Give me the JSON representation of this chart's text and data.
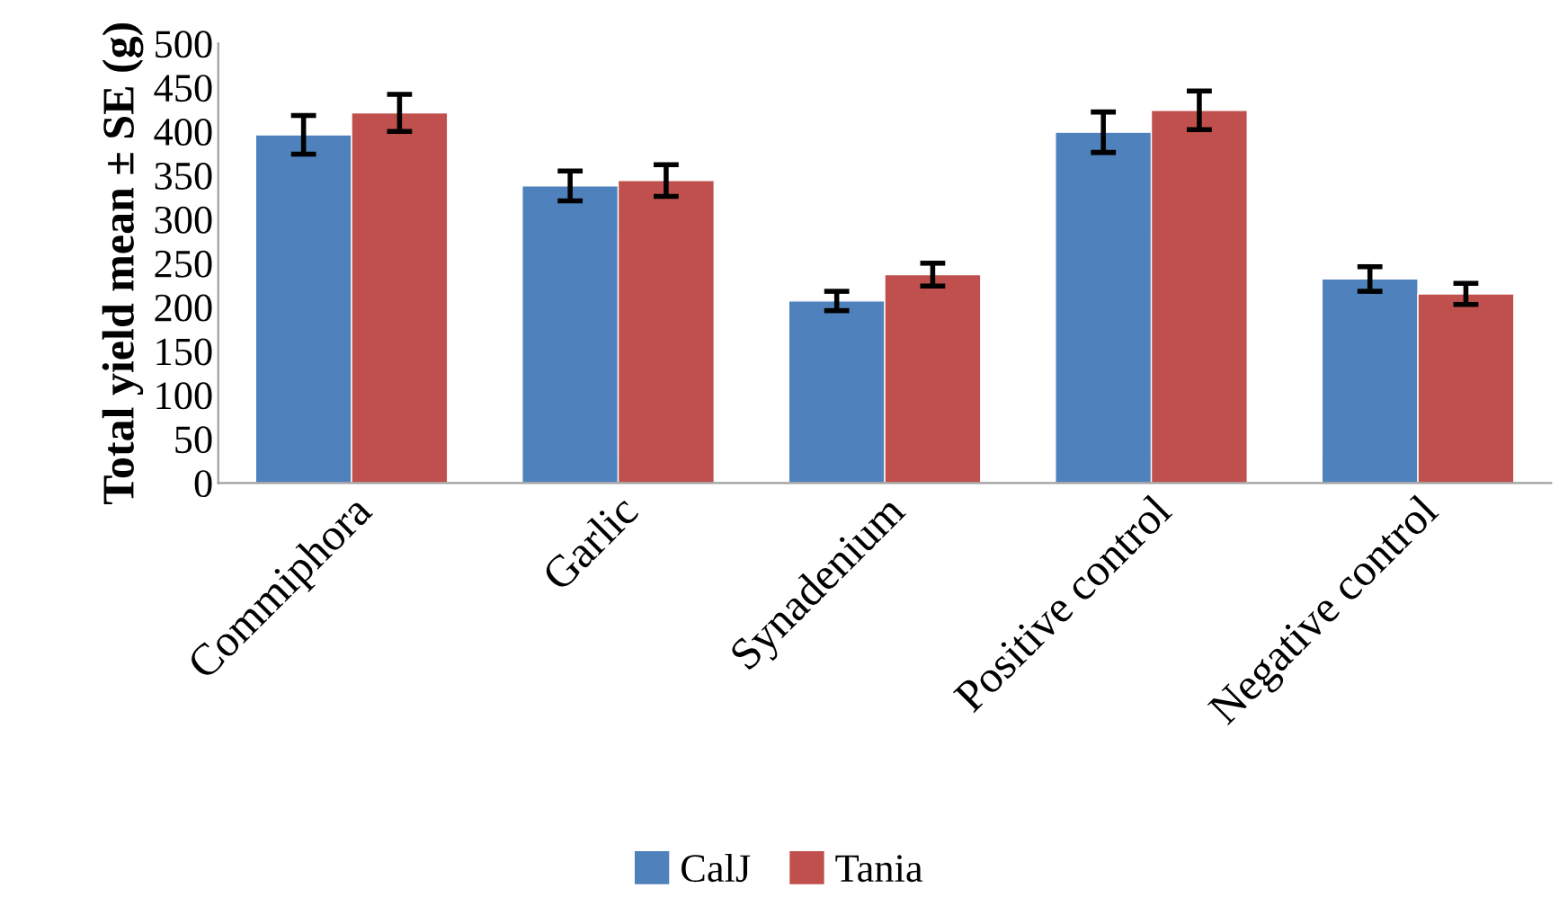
{
  "chart_data": {
    "type": "bar",
    "ylabel": "Total yield mean ± SE (g)",
    "categories": [
      "Commiphora",
      "Garlic",
      "Synadenium",
      "Positive control",
      "Negative control"
    ],
    "series": [
      {
        "name": "CalJ",
        "color": "#4f81bd",
        "values": [
          396,
          338,
          207,
          399,
          232
        ],
        "errors": [
          22,
          17,
          11,
          23,
          14
        ]
      },
      {
        "name": "Tania",
        "color": "#c0504d",
        "values": [
          421,
          344,
          237,
          424,
          215
        ],
        "errors": [
          21,
          18,
          13,
          22,
          12
        ]
      }
    ],
    "ylim": [
      0,
      500
    ],
    "yticks": [
      0,
      50,
      100,
      150,
      200,
      250,
      300,
      350,
      400,
      450,
      500
    ],
    "grid": false,
    "legend": "bottom"
  }
}
